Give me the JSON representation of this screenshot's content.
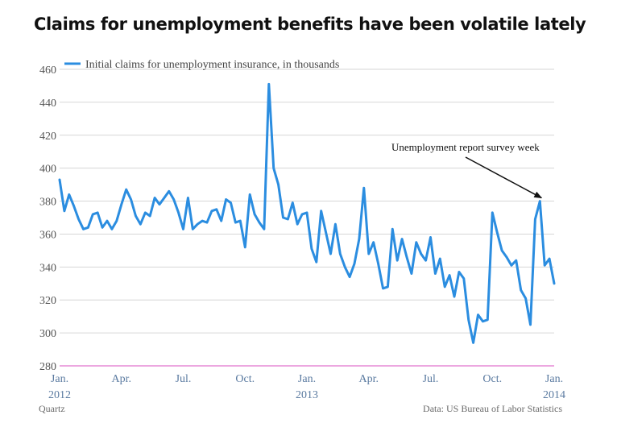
{
  "chart_data": {
    "type": "line",
    "title": "Claims for unemployment benefits have been volatile lately",
    "legend": {
      "label": "Initial claims for unemployment insurance, in thousands",
      "placement": "top-left"
    },
    "source": "Data: US Bureau of Labor Statistics",
    "credit": "Quartz",
    "ylim": [
      280,
      460
    ],
    "yticks": [
      280,
      300,
      320,
      340,
      360,
      380,
      400,
      420,
      440,
      460
    ],
    "xlim": [
      0,
      104
    ],
    "xticks": [
      {
        "x": 0,
        "label": "Jan.",
        "year": "2012"
      },
      {
        "x": 13,
        "label": "Apr.",
        "year": ""
      },
      {
        "x": 26,
        "label": "Jul.",
        "year": ""
      },
      {
        "x": 39,
        "label": "Oct.",
        "year": ""
      },
      {
        "x": 52,
        "label": "Jan.",
        "year": "2013"
      },
      {
        "x": 65,
        "label": "Apr.",
        "year": ""
      },
      {
        "x": 78,
        "label": "Jul.",
        "year": ""
      },
      {
        "x": 91,
        "label": "Oct.",
        "year": ""
      },
      {
        "x": 104,
        "label": "Jan.",
        "year": "2014"
      }
    ],
    "grid": true,
    "series": [
      {
        "name": "Initial claims for unemployment insurance, in thousands",
        "color": "#2b8de0",
        "values": [
          393,
          374,
          384,
          377,
          369,
          363,
          364,
          372,
          373,
          364,
          368,
          363,
          368,
          378,
          387,
          381,
          371,
          366,
          373,
          371,
          382,
          378,
          382,
          386,
          381,
          373,
          363,
          382,
          363,
          366,
          368,
          367,
          374,
          375,
          368,
          381,
          379,
          367,
          368,
          352,
          384,
          372,
          367,
          363,
          451,
          400,
          390,
          370,
          369,
          379,
          366,
          372,
          373,
          351,
          343,
          374,
          361,
          348,
          366,
          348,
          340,
          334,
          342,
          357,
          388,
          348,
          355,
          342,
          327,
          328,
          363,
          344,
          357,
          346,
          336,
          355,
          348,
          344,
          358,
          336,
          345,
          328,
          335,
          322,
          337,
          333,
          308,
          294,
          311,
          307,
          308,
          373,
          361,
          350,
          346,
          341,
          344,
          326,
          321,
          305,
          369,
          380,
          341,
          345,
          330
        ]
      }
    ],
    "annotations": [
      {
        "text": "Unemployment report survey week",
        "x": 101,
        "y": 380
      }
    ]
  }
}
